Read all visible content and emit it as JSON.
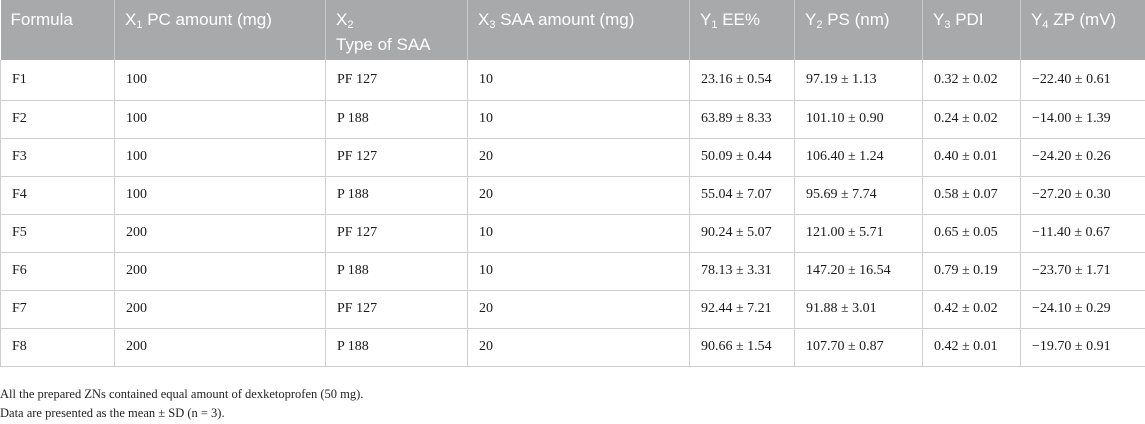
{
  "table": {
    "headers": [
      {
        "pre": "Formula",
        "sub": "",
        "post": "",
        "line2": ""
      },
      {
        "pre": "X",
        "sub": "1",
        "post": " PC amount (mg)",
        "line2": ""
      },
      {
        "pre": "X",
        "sub": "2",
        "post": "",
        "line2": "Type of SAA"
      },
      {
        "pre": "X",
        "sub": "3",
        "post": " SAA amount (mg)",
        "line2": ""
      },
      {
        "pre": "Y",
        "sub": "1",
        "post": " EE%",
        "line2": ""
      },
      {
        "pre": "Y",
        "sub": "2",
        "post": " PS (nm)",
        "line2": ""
      },
      {
        "pre": "Y",
        "sub": "3",
        "post": " PDI",
        "line2": ""
      },
      {
        "pre": "Y",
        "sub": "4",
        "post": " ZP (mV)",
        "line2": ""
      }
    ],
    "rows": [
      [
        "F1",
        "100",
        "PF 127",
        "10",
        "23.16 ± 0.54",
        "97.19 ± 1.13",
        "0.32 ± 0.02",
        "−22.40 ± 0.61"
      ],
      [
        "F2",
        "100",
        "P 188",
        "10",
        "63.89 ± 8.33",
        "101.10 ± 0.90",
        "0.24 ± 0.02",
        "−14.00 ± 1.39"
      ],
      [
        "F3",
        "100",
        "PF 127",
        "20",
        "50.09 ± 0.44",
        "106.40 ± 1.24",
        "0.40 ± 0.01",
        "−24.20 ± 0.26"
      ],
      [
        "F4",
        "100",
        "P 188",
        "20",
        "55.04 ± 7.07",
        "95.69 ± 7.74",
        "0.58 ± 0.07",
        "−27.20 ± 0.30"
      ],
      [
        "F5",
        "200",
        "PF 127",
        "10",
        "90.24 ± 5.07",
        "121.00 ± 5.71",
        "0.65 ± 0.05",
        "−11.40 ± 0.67"
      ],
      [
        "F6",
        "200",
        "P 188",
        "10",
        "78.13 ± 3.31",
        "147.20 ± 16.54",
        "0.79 ± 0.19",
        "−23.70 ± 1.71"
      ],
      [
        "F7",
        "200",
        "PF 127",
        "20",
        "92.44 ± 7.21",
        "91.88 ± 3.01",
        "0.42 ± 0.02",
        "−24.10 ± 0.29"
      ],
      [
        "F8",
        "200",
        "P 188",
        "20",
        "90.66 ± 1.54",
        "107.70 ± 0.87",
        "0.42 ± 0.01",
        "−19.70 ± 0.91"
      ]
    ]
  },
  "notes": [
    "All the prepared ZNs contained equal amount of dexketoprofen (50 mg).",
    "Data are presented as the mean ± SD (n = 3)."
  ],
  "colors": {
    "header_bg": "#a7a9ab",
    "header_text": "#ffffff",
    "grid": "#cfcfcf"
  }
}
